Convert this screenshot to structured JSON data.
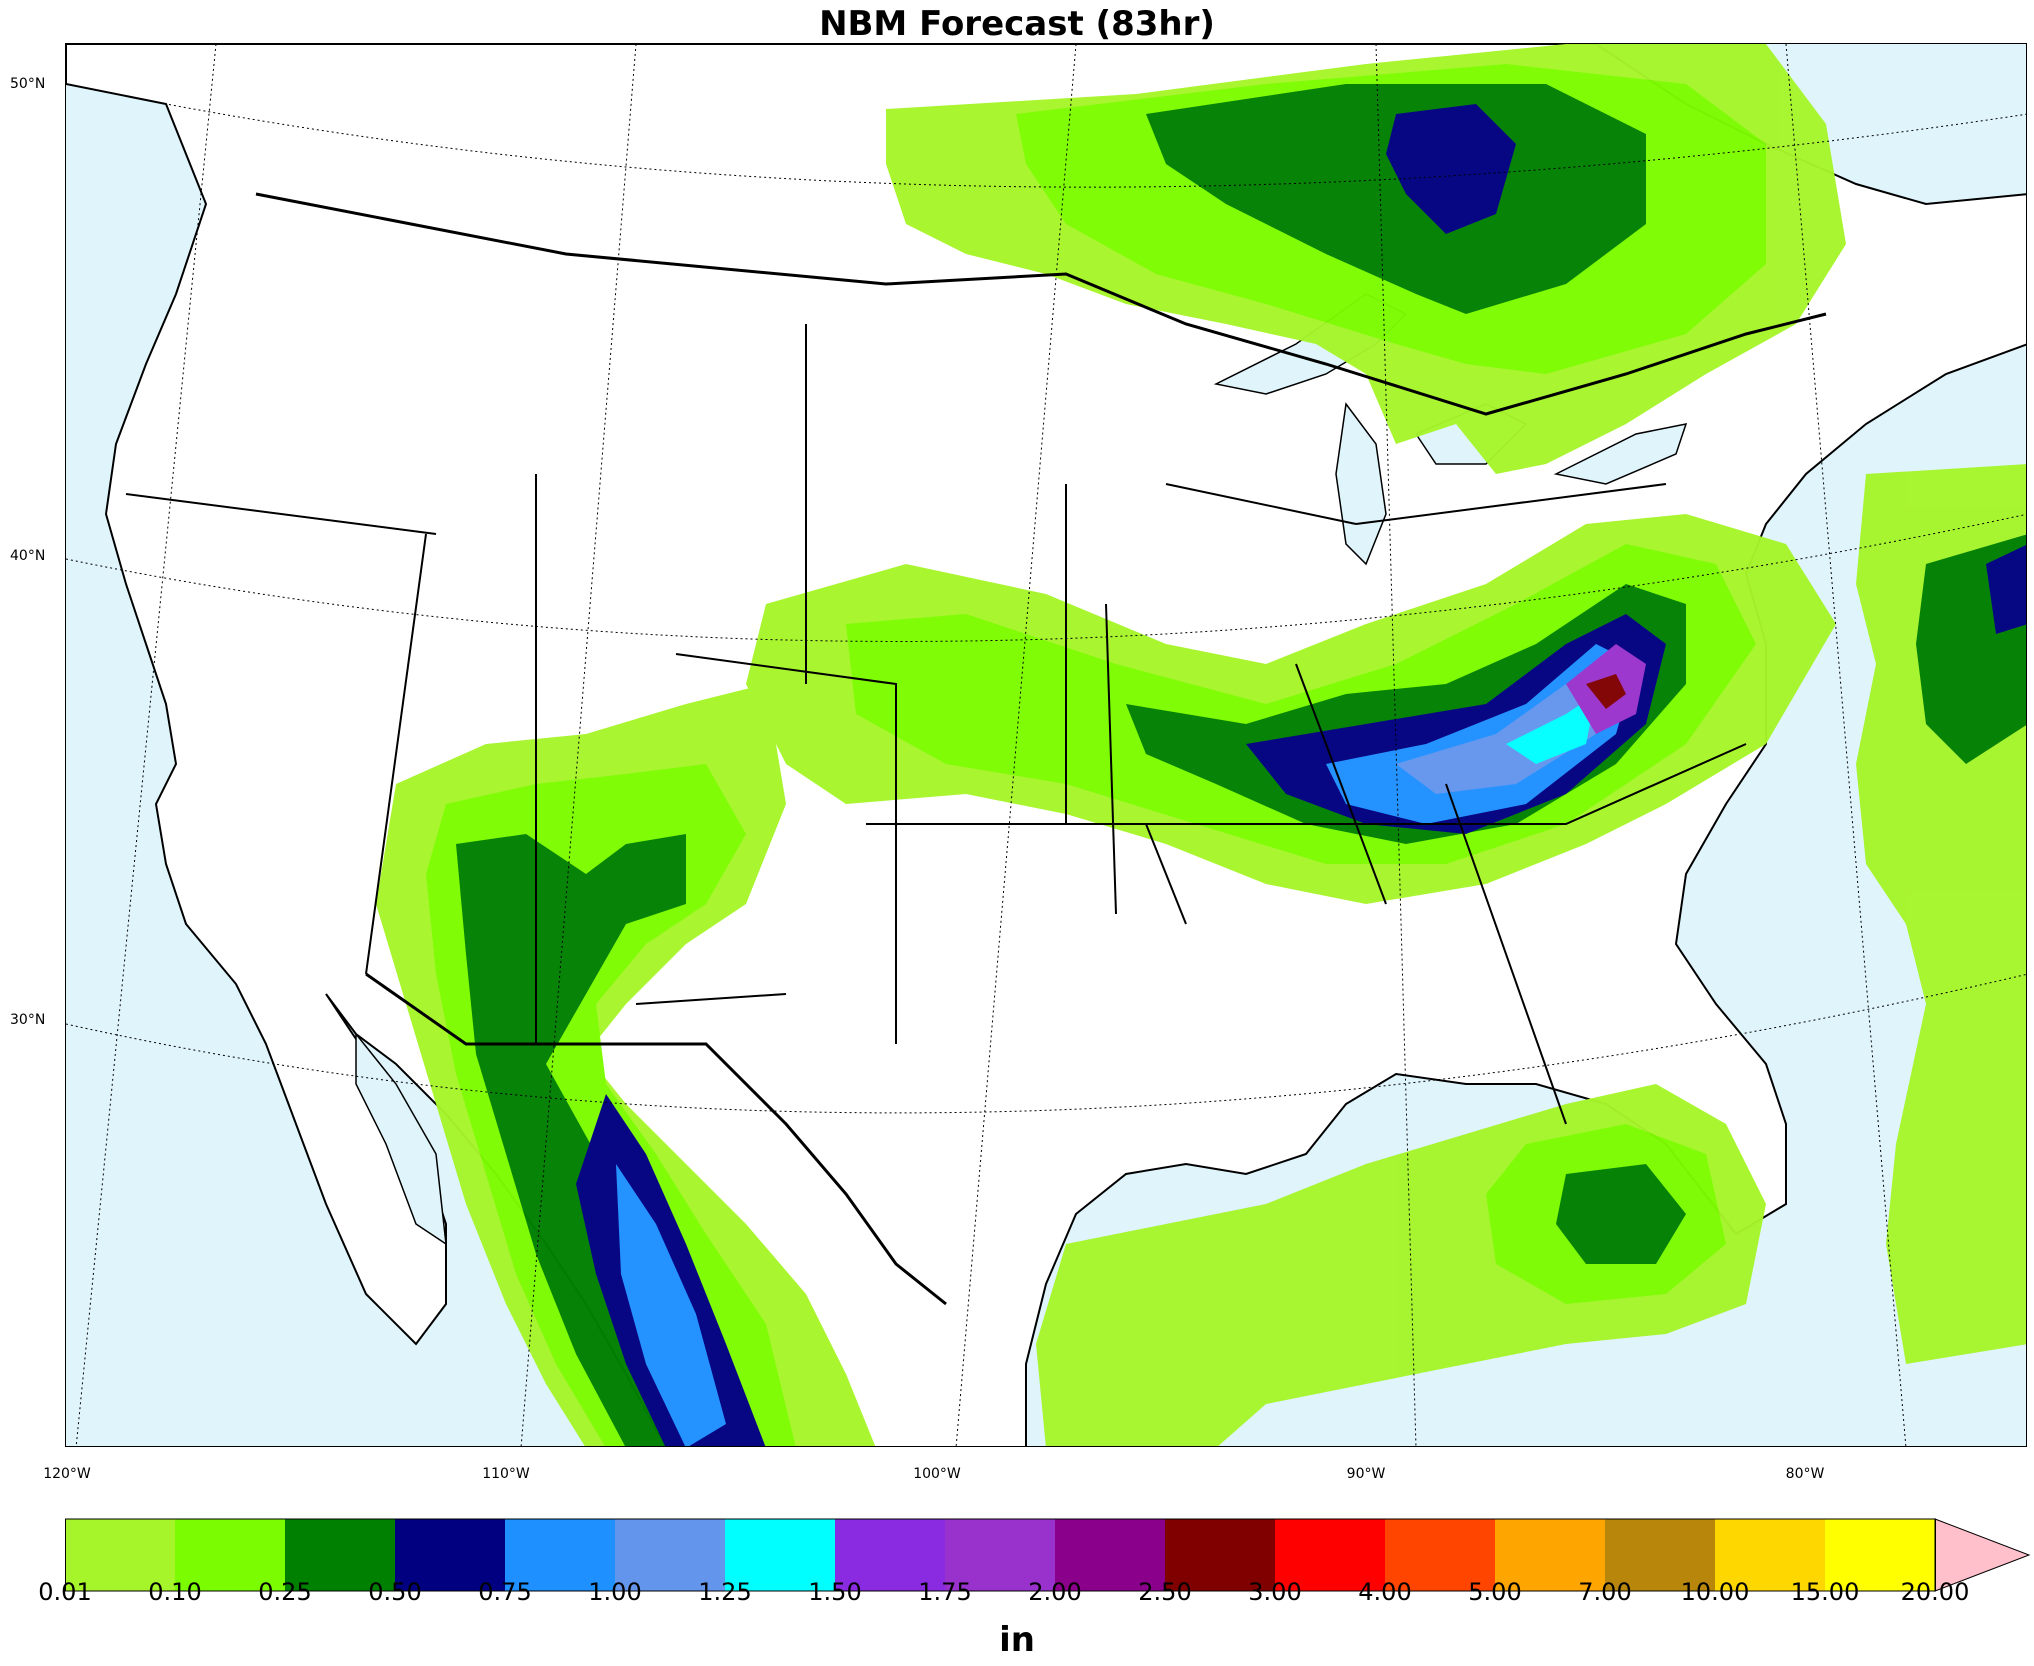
{
  "title": "NBM Forecast (83hr)",
  "units": "in",
  "latitude_labels": [
    "50°N",
    "40°N",
    "30°N"
  ],
  "longitude_labels": [
    "120°W",
    "110°W",
    "100°W",
    "90°W",
    "80°W"
  ],
  "colorbar": {
    "ticks": [
      "0.01",
      "0.10",
      "0.25",
      "0.50",
      "0.75",
      "1.00",
      "1.25",
      "1.50",
      "1.75",
      "2.00",
      "2.50",
      "3.00",
      "4.00",
      "5.00",
      "7.00",
      "10.00",
      "15.00",
      "20.00"
    ],
    "colors": [
      "#a6f52a",
      "#7cfc00",
      "#008000",
      "#000080",
      "#1e90ff",
      "#6495ed",
      "#00ffff",
      "#8a2be2",
      "#9932cc",
      "#8b008b",
      "#800000",
      "#ff0000",
      "#ff4500",
      "#ffa500",
      "#b8860b",
      "#ffd700",
      "#ffff00"
    ],
    "extend_color": "#ffc0cb"
  },
  "map_colors": {
    "ocean": "#dff4fb",
    "land": "#ffffff",
    "border": "#000000"
  }
}
